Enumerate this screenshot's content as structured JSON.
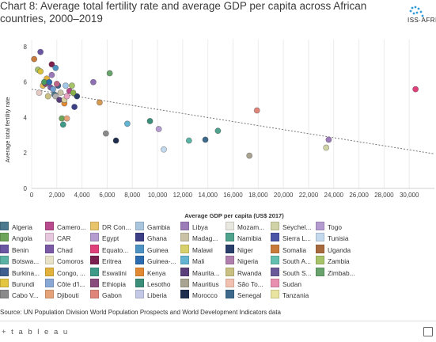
{
  "title": "Chart 8: Average total fertility rate and average GDP per capita across African countries, 2000–2019",
  "logo": {
    "text": "ISS·AFRICA",
    "accent": "#2e9bd6"
  },
  "source": "Source: UN Population Division World Population Prospects and World Development Indicators data",
  "footer": {
    "brand": "+ t a b l e a u"
  },
  "chart_data": {
    "type": "scatter",
    "xlabel": "Average GDP per capita (US$ 2017)",
    "ylabel": "Average total fertility rate",
    "xlim": [
      0,
      32000
    ],
    "ylim": [
      0,
      8.4
    ],
    "xticks": [
      0,
      2000,
      4000,
      6000,
      8000,
      10000,
      12000,
      14000,
      16000,
      18000,
      20000,
      22000,
      24000,
      26000,
      28000,
      30000
    ],
    "xtick_labels": [
      "0",
      "2,000",
      "4,000",
      "6,000",
      "8,000",
      "10,000",
      "12,000",
      "14,000",
      "16,000",
      "18,000",
      "20,000",
      "22,000",
      "24,000",
      "26,000",
      "28,000",
      "30,000"
    ],
    "yticks": [
      0,
      2,
      4,
      6,
      8
    ],
    "trendline": {
      "x": [
        0,
        32000
      ],
      "y": [
        5.6,
        1.95
      ],
      "style": "dashed",
      "color": "#777777"
    },
    "grid": "vertical",
    "points": [
      {
        "x": 1800,
        "y": 5.3,
        "color": "#4e7a8f"
      },
      {
        "x": 200,
        "y": 7.3,
        "color": "#c87b3b"
      },
      {
        "x": 500,
        "y": 6.7,
        "color": "#a8c46a"
      },
      {
        "x": 700,
        "y": 6.6,
        "color": "#d8c23b"
      },
      {
        "x": 700,
        "y": 7.7,
        "color": "#6a56a3"
      },
      {
        "x": 1200,
        "y": 6.2,
        "color": "#e3b23c"
      },
      {
        "x": 1500,
        "y": 5.7,
        "color": "#7b59a6"
      },
      {
        "x": 1600,
        "y": 6.4,
        "color": "#9a79b6"
      },
      {
        "x": 1600,
        "y": 7.0,
        "color": "#7b1f4e"
      },
      {
        "x": 1900,
        "y": 6.8,
        "color": "#4d93c3"
      },
      {
        "x": 2100,
        "y": 5.8,
        "color": "#3f5f8f"
      },
      {
        "x": 2300,
        "y": 5.4,
        "color": "#c9c2a6"
      },
      {
        "x": 2400,
        "y": 3.95,
        "color": "#6fa55a"
      },
      {
        "x": 2500,
        "y": 3.6,
        "color": "#3d9a88"
      },
      {
        "x": 2600,
        "y": 4.8,
        "color": "#e28a33"
      },
      {
        "x": 2800,
        "y": 3.95,
        "color": "#e6a37a"
      },
      {
        "x": 3000,
        "y": 5.5,
        "color": "#b84a8d"
      },
      {
        "x": 3200,
        "y": 5.8,
        "color": "#a8c46a"
      },
      {
        "x": 3400,
        "y": 4.6,
        "color": "#3c3f86"
      },
      {
        "x": 3600,
        "y": 5.2,
        "color": "#2a3e6b"
      },
      {
        "x": 4900,
        "y": 6.0,
        "color": "#8e6fb4"
      },
      {
        "x": 5400,
        "y": 4.85,
        "color": "#d59b55"
      },
      {
        "x": 5900,
        "y": 3.1,
        "color": "#8a8a8a"
      },
      {
        "x": 6200,
        "y": 6.5,
        "color": "#67a36b"
      },
      {
        "x": 6700,
        "y": 2.7,
        "color": "#1f2d4f"
      },
      {
        "x": 7600,
        "y": 3.65,
        "color": "#63b4d3"
      },
      {
        "x": 9400,
        "y": 3.8,
        "color": "#3a8e7a"
      },
      {
        "x": 10100,
        "y": 3.35,
        "color": "#b49bd0"
      },
      {
        "x": 10500,
        "y": 2.2,
        "color": "#c3d9ee"
      },
      {
        "x": 12500,
        "y": 2.7,
        "color": "#5bb3a5"
      },
      {
        "x": 13800,
        "y": 2.75,
        "color": "#3d6a8c"
      },
      {
        "x": 14800,
        "y": 3.25,
        "color": "#4fa28c"
      },
      {
        "x": 17300,
        "y": 1.85,
        "color": "#a9a491"
      },
      {
        "x": 17900,
        "y": 4.4,
        "color": "#e0857a"
      },
      {
        "x": 23400,
        "y": 2.3,
        "color": "#cfd3a6"
      },
      {
        "x": 23600,
        "y": 2.75,
        "color": "#9b7cb8"
      },
      {
        "x": 30500,
        "y": 5.6,
        "color": "#e0407a"
      },
      {
        "x": 600,
        "y": 5.4,
        "color": "#e5c9c4"
      },
      {
        "x": 900,
        "y": 5.8,
        "color": "#e6b955"
      },
      {
        "x": 1100,
        "y": 5.9,
        "color": "#8a4b7d"
      },
      {
        "x": 1300,
        "y": 5.2,
        "color": "#c9c082"
      },
      {
        "x": 1700,
        "y": 5.6,
        "color": "#6f9fd3"
      },
      {
        "x": 1900,
        "y": 5.2,
        "color": "#b0b0b0"
      },
      {
        "x": 2000,
        "y": 5.9,
        "color": "#c06488"
      },
      {
        "x": 2200,
        "y": 5.0,
        "color": "#5a3f7a"
      },
      {
        "x": 2600,
        "y": 5.0,
        "color": "#d6cf9e"
      },
      {
        "x": 2700,
        "y": 5.8,
        "color": "#a1c6e7"
      },
      {
        "x": 1000,
        "y": 6.0,
        "color": "#4c9a5c"
      },
      {
        "x": 1400,
        "y": 6.0,
        "color": "#2b6cb0"
      },
      {
        "x": 2800,
        "y": 5.2,
        "color": "#e9a2c1"
      },
      {
        "x": 3300,
        "y": 5.4,
        "color": "#88b04b"
      }
    ],
    "legend": [
      {
        "name": "Algeria",
        "color": "#4e7a8f"
      },
      {
        "name": "Angola",
        "color": "#6fa55a"
      },
      {
        "name": "Benin",
        "color": "#6a56a3"
      },
      {
        "name": "Botswa...",
        "color": "#5bb3a5"
      },
      {
        "name": "Burkina...",
        "color": "#3f5f8f"
      },
      {
        "name": "Burundi",
        "color": "#e3c53f"
      },
      {
        "name": "Cabo V...",
        "color": "#8a8a8a"
      },
      {
        "name": "Camero...",
        "color": "#b84a8d"
      },
      {
        "name": "CAR",
        "color": "#e6c7dd"
      },
      {
        "name": "Chad",
        "color": "#7b59a6"
      },
      {
        "name": "Comoros",
        "color": "#e8e3c8"
      },
      {
        "name": "Congo, ...",
        "color": "#e3b23c"
      },
      {
        "name": "Côte d'I...",
        "color": "#8aa8d6"
      },
      {
        "name": "Djibouti",
        "color": "#e6a37a"
      },
      {
        "name": "DR Con...",
        "color": "#e8c46a"
      },
      {
        "name": "Egypt",
        "color": "#b49bd0"
      },
      {
        "name": "Equato...",
        "color": "#e0407a"
      },
      {
        "name": "Eritrea",
        "color": "#7b1f4e"
      },
      {
        "name": "Eswatini",
        "color": "#3d9a88"
      },
      {
        "name": "Ethiopia",
        "color": "#8a4b7d"
      },
      {
        "name": "Gabon",
        "color": "#e0857a"
      },
      {
        "name": "Gambia",
        "color": "#a9c6de"
      },
      {
        "name": "Ghana",
        "color": "#3c3f86"
      },
      {
        "name": "Guinea",
        "color": "#4d93c3"
      },
      {
        "name": "Guinea-...",
        "color": "#2b6cb0"
      },
      {
        "name": "Kenya",
        "color": "#e28a33"
      },
      {
        "name": "Lesotho",
        "color": "#3a8e7a"
      },
      {
        "name": "Liberia",
        "color": "#c3c8e6"
      },
      {
        "name": "Libya",
        "color": "#9b7cb8"
      },
      {
        "name": "Madag...",
        "color": "#c9c2a6"
      },
      {
        "name": "Malawi",
        "color": "#d8d06a"
      },
      {
        "name": "Mali",
        "color": "#63b4d3"
      },
      {
        "name": "Maurita...",
        "color": "#5a3f7a"
      },
      {
        "name": "Mauritius",
        "color": "#a9a491"
      },
      {
        "name": "Morocco",
        "color": "#1f2d4f"
      },
      {
        "name": "Mozam...",
        "color": "#e8e8e0"
      },
      {
        "name": "Namibia",
        "color": "#4fa28c"
      },
      {
        "name": "Niger",
        "color": "#2a3e6b"
      },
      {
        "name": "Nigeria",
        "color": "#b07fae"
      },
      {
        "name": "Rwanda",
        "color": "#c9c082"
      },
      {
        "name": "São To...",
        "color": "#f2c1b0"
      },
      {
        "name": "Senegal",
        "color": "#3d6a8c"
      },
      {
        "name": "Seychel...",
        "color": "#cfd3a6"
      },
      {
        "name": "Sierra L...",
        "color": "#4a55a8"
      },
      {
        "name": "Somalia",
        "color": "#c87b3b"
      },
      {
        "name": "South A...",
        "color": "#63c0b0"
      },
      {
        "name": "South S...",
        "color": "#6a5a9a"
      },
      {
        "name": "Sudan",
        "color": "#e98fb0"
      },
      {
        "name": "Tanzania",
        "color": "#e9e4a0"
      },
      {
        "name": "Togo",
        "color": "#b49bd0"
      },
      {
        "name": "Tunisia",
        "color": "#c3d9ee"
      },
      {
        "name": "Uganda",
        "color": "#a86a3c"
      },
      {
        "name": "Zambia",
        "color": "#a8c46a"
      },
      {
        "name": "Zimbab...",
        "color": "#67a36b"
      }
    ]
  }
}
